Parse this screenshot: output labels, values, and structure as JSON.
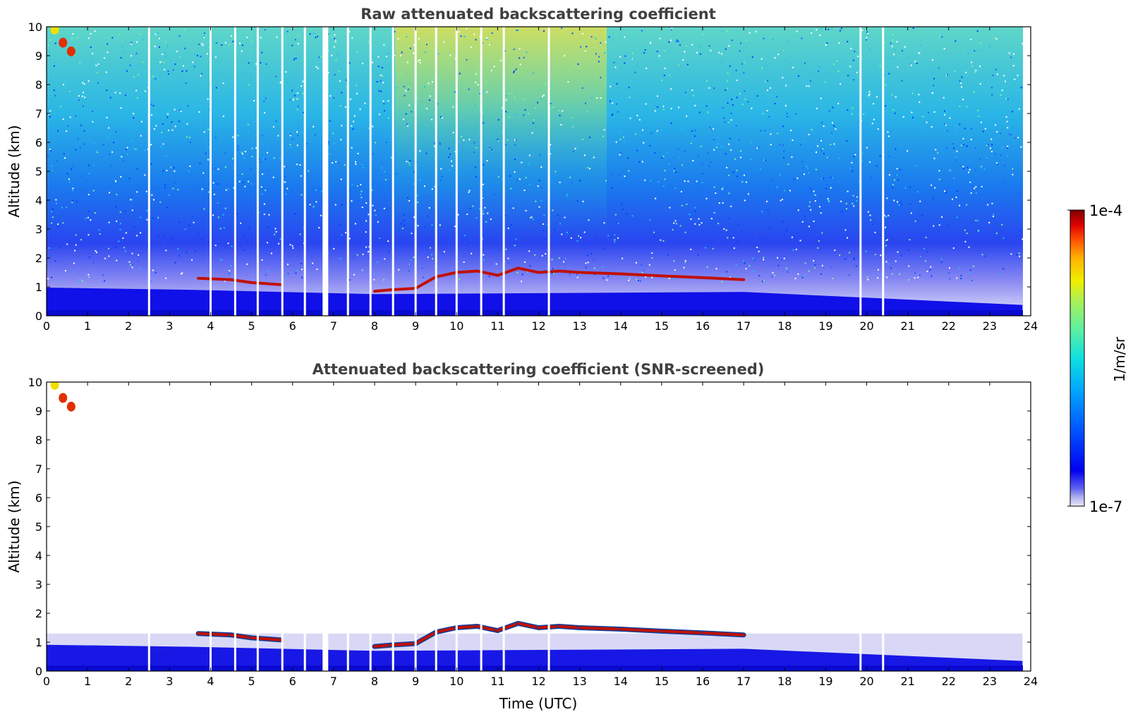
{
  "chart_data": [
    {
      "type": "heatmap",
      "title": "Raw attenuated backscattering coefficient",
      "xlabel": "",
      "ylabel": "Altitude (km)",
      "xlim": [
        0,
        24
      ],
      "ylim": [
        0,
        10
      ],
      "xticks": [
        0,
        1,
        2,
        3,
        4,
        5,
        6,
        7,
        8,
        9,
        10,
        11,
        12,
        13,
        14,
        15,
        16,
        17,
        18,
        19,
        20,
        21,
        22,
        23,
        24
      ],
      "yticks": [
        0,
        1,
        2,
        3,
        4,
        5,
        6,
        7,
        8,
        9,
        10
      ],
      "grid": false,
      "data_gaps_utc": [
        2.5,
        4.0,
        4.6,
        5.15,
        5.75,
        6.3,
        6.8,
        7.35,
        7.9,
        8.45,
        9.0,
        9.5,
        10.0,
        10.6,
        11.15,
        12.25,
        19.85,
        20.4
      ],
      "boundary_layer_top_km": [
        [
          0,
          1.3
        ],
        [
          3.5,
          1.2
        ],
        [
          8,
          1.0
        ],
        [
          17,
          1.1
        ],
        [
          23.8,
          0.5
        ]
      ],
      "cloud_layer": [
        [
          3.7,
          1.3
        ],
        [
          4.5,
          1.25
        ],
        [
          5.0,
          1.15
        ],
        [
          5.7,
          1.08
        ],
        [
          8.0,
          0.85
        ],
        [
          8.4,
          0.9
        ],
        [
          9.0,
          0.95
        ],
        [
          9.5,
          1.35
        ],
        [
          10.0,
          1.5
        ],
        [
          10.5,
          1.55
        ],
        [
          11.0,
          1.4
        ],
        [
          11.5,
          1.65
        ],
        [
          12.0,
          1.5
        ],
        [
          12.5,
          1.55
        ],
        [
          13.0,
          1.5
        ],
        [
          14.0,
          1.45
        ],
        [
          15.0,
          1.38
        ],
        [
          16.0,
          1.32
        ],
        [
          17.0,
          1.25
        ]
      ],
      "cirrus": [
        [
          0.2,
          9.9
        ],
        [
          0.4,
          9.45
        ],
        [
          0.6,
          9.15
        ]
      ]
    },
    {
      "type": "heatmap",
      "title": "Attenuated backscattering coefficient (SNR-screened)",
      "xlabel": "Time (UTC)",
      "ylabel": "Altitude (km)",
      "xlim": [
        0,
        24
      ],
      "ylim": [
        0,
        10
      ],
      "xticks": [
        0,
        1,
        2,
        3,
        4,
        5,
        6,
        7,
        8,
        9,
        10,
        11,
        12,
        13,
        14,
        15,
        16,
        17,
        18,
        19,
        20,
        21,
        22,
        23,
        24
      ],
      "yticks": [
        0,
        1,
        2,
        3,
        4,
        5,
        6,
        7,
        8,
        9,
        10
      ],
      "grid": false,
      "screen_top_km": 1.3
    }
  ],
  "colorbar": {
    "label": "1/m/sr",
    "max_label": "1e-4",
    "min_label": "1e-7",
    "colormap": "jet",
    "colors": [
      "#e8e8f8",
      "#b0b0f0",
      "#6060f0",
      "#0000f0",
      "#0050ff",
      "#00a0ff",
      "#10e0e0",
      "#60f0a0",
      "#b0f050",
      "#f0f000",
      "#ffb000",
      "#ff5000",
      "#e00000",
      "#800000"
    ]
  }
}
